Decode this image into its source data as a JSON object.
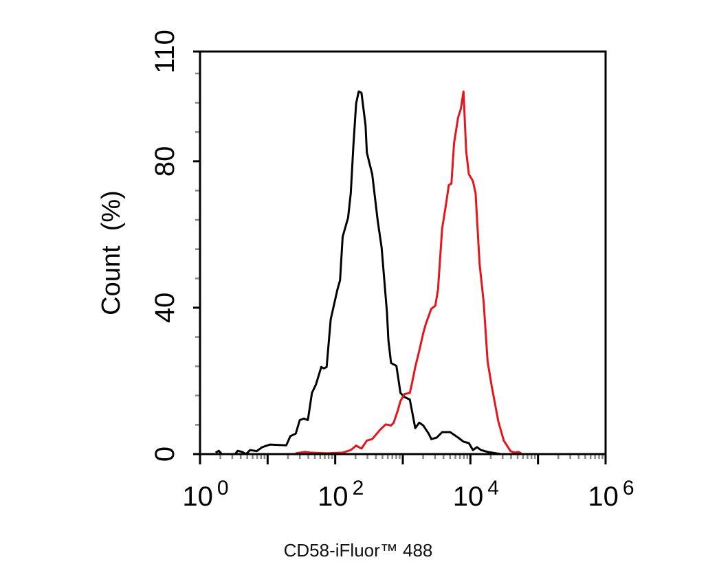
{
  "chart_data": {
    "type": "line",
    "title": "",
    "xlabel": "CD58-iFluor™ 488",
    "ylabel": "Count  (%)",
    "x_scale": "log",
    "xlim": [
      1,
      1000000
    ],
    "ylim": [
      0,
      110
    ],
    "grid": false,
    "x_ticks": [
      {
        "base": "10",
        "exp": "0",
        "value": 1
      },
      {
        "base": "10",
        "exp": "2",
        "value": 100
      },
      {
        "base": "10",
        "exp": "4",
        "value": 10000
      },
      {
        "base": "10",
        "exp": "6",
        "value": 1000000
      }
    ],
    "y_ticks": [
      "0",
      "40",
      "80",
      "110"
    ],
    "y_tick_values": [
      0,
      40,
      80,
      110
    ],
    "series": [
      {
        "color": "#000000",
        "x": [
          1.7,
          1.9,
          2.1,
          3.3,
          3.6,
          4.2,
          4.8,
          5.5,
          6.9,
          8.3,
          10.9,
          18.9,
          21.7,
          26.1,
          29.9,
          34.4,
          39.4,
          45.2,
          51.8,
          62.2,
          68.2,
          74.7,
          85.7,
          107.7,
          118,
          129,
          155,
          170,
          186,
          204,
          223,
          245,
          281,
          294,
          322,
          353,
          424,
          486,
          533,
          584,
          611,
          670,
          804,
          923,
          1057,
          1270,
          1528,
          1750,
          2009,
          2413,
          2643,
          3175,
          3814,
          5020,
          6580,
          7900,
          9500,
          10900,
          12500,
          14300,
          18000,
          28400,
          44900
        ],
        "y": [
          0.4,
          0.9,
          0,
          0,
          0.9,
          0.6,
          0,
          1.1,
          0.8,
          1.9,
          2.6,
          2.4,
          4.9,
          5.6,
          9.3,
          9.7,
          9.3,
          16.7,
          19.0,
          23.8,
          23.4,
          23.8,
          36.8,
          44.9,
          47.5,
          59.4,
          64.6,
          71.3,
          84.6,
          95.8,
          99.1,
          98.7,
          89.8,
          82.4,
          79.4,
          76.5,
          63.9,
          56.4,
          47.5,
          38.6,
          31.2,
          24.9,
          24.1,
          16.7,
          15.6,
          14.9,
          7.1,
          8.6,
          7.8,
          5.6,
          4.1,
          4.5,
          6.0,
          6.0,
          4.5,
          3.4,
          3.0,
          1.1,
          1.9,
          1.1,
          0.6,
          0,
          0
        ]
      },
      {
        "color": "#e8141b",
        "x": [
          26,
          36,
          43,
          75,
          129,
          170,
          204,
          245,
          294,
          353,
          464,
          558,
          670,
          734,
          843,
          923,
          1057,
          1270,
          1393,
          1528,
          1750,
          2009,
          2200,
          2643,
          3030,
          3320,
          3814,
          4366,
          4786,
          5240,
          5740,
          6580,
          7210,
          7900,
          8670,
          9500,
          10900,
          11940,
          12500,
          13680,
          15700,
          18000,
          20650,
          25900,
          31200,
          39200,
          44900,
          51500,
          56400
        ],
        "y": [
          0.2,
          0.6,
          0.4,
          0.2,
          0.4,
          1.1,
          2.3,
          1.5,
          3.7,
          4.1,
          6.7,
          8.1,
          7.8,
          8.6,
          11.9,
          14.5,
          16.4,
          16.7,
          20.1,
          23.8,
          28.2,
          33.1,
          35.7,
          39.7,
          40.5,
          44.9,
          61.6,
          68.3,
          73.5,
          73.9,
          85.0,
          92.0,
          94.3,
          99.1,
          82.8,
          76.5,
          74.6,
          71.3,
          64.6,
          52.0,
          41.6,
          25.3,
          18.6,
          8.9,
          3.7,
          0.8,
          0.4,
          0.6,
          0.2
        ]
      }
    ]
  }
}
